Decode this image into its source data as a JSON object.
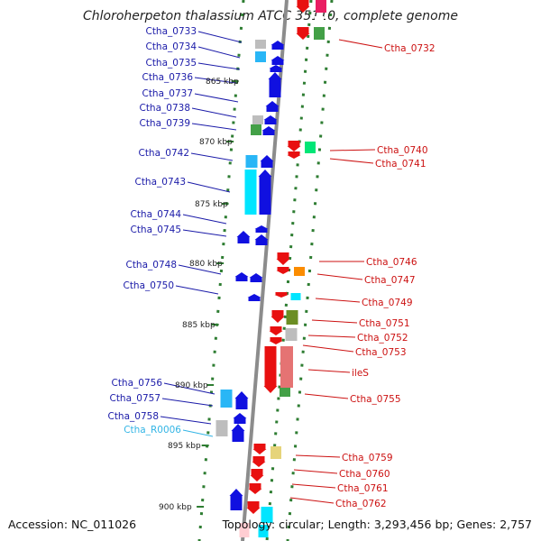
{
  "title": "Chloroherpeton thalassium ATCC 35110, complete genome",
  "footer": {
    "accession": "Accession: NC_011026",
    "topology": "Topology: circular; Length: 3,293,456 bp; Genes: 2,757"
  },
  "colors": {
    "forward": "#1010e0",
    "reverse": "#e81010",
    "forward_label": "#1a1aa8",
    "reverse_label": "#cc1111",
    "rna_label": "#33b5e5",
    "grid": "#2e7d32",
    "backbone": "#8c8c8c"
  },
  "kbp_ticks": [
    "865 kbp",
    "870 kbp",
    "875 kbp",
    "880 kbp",
    "885 kbp",
    "890 kbp",
    "895 kbp",
    "900 kbp"
  ],
  "left_labels": [
    "Ctha_0733",
    "Ctha_0734",
    "Ctha_0735",
    "Ctha_0736",
    "Ctha_0737",
    "Ctha_0738",
    "Ctha_0739",
    "Ctha_0742",
    "Ctha_0743",
    "Ctha_0744",
    "Ctha_0745",
    "Ctha_0748",
    "Ctha_0750",
    "Ctha_0756",
    "Ctha_0757",
    "Ctha_0758",
    "Ctha_R0006"
  ],
  "right_labels": [
    "Ctha_0732",
    "Ctha_0740",
    "Ctha_0741",
    "Ctha_0746",
    "Ctha_0747",
    "Ctha_0749",
    "Ctha_0751",
    "Ctha_0752",
    "Ctha_0753",
    "ileS",
    "Ctha_0755",
    "Ctha_0759",
    "Ctha_0760",
    "Ctha_0761",
    "Ctha_0762"
  ]
}
